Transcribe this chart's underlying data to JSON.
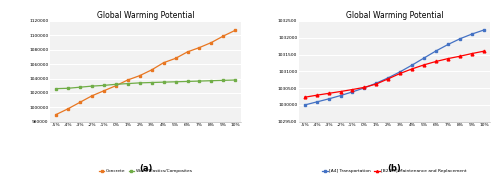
{
  "title": "Global Warming Potential",
  "x_labels": [
    "-5%",
    "-4%",
    "-3%",
    "-2%",
    "-1%",
    "0%",
    "1%",
    "2%",
    "3%",
    "4%",
    "5%",
    "6%",
    "7%",
    "8%",
    "9%",
    "10%"
  ],
  "x_vals": [
    -5,
    -4,
    -3,
    -2,
    -1,
    0,
    1,
    2,
    3,
    4,
    5,
    6,
    7,
    8,
    9,
    10
  ],
  "concrete_values": [
    990000,
    998000,
    1007000,
    1016000,
    1023000,
    1030000,
    1038000,
    1044000,
    1052000,
    1062000,
    1068000,
    1077000,
    1083000,
    1090000,
    1099000,
    1107000
  ],
  "concrete_color": "#E87722",
  "concrete_label": "Concrete",
  "wood_values": [
    1026000,
    1026500,
    1028000,
    1029500,
    1030500,
    1032000,
    1033000,
    1034000,
    1034500,
    1035000,
    1035500,
    1036000,
    1036500,
    1037000,
    1037500,
    1038000
  ],
  "wood_color": "#70AD47",
  "wood_label": "Wood/Plastics/Composites",
  "ylim_a": [
    980000,
    1120000
  ],
  "yticks_a": [
    980000,
    1000000,
    1020000,
    1040000,
    1060000,
    1080000,
    1100000,
    1120000
  ],
  "transport_values": [
    1030000,
    1030090,
    1030180,
    1030280,
    1030390,
    1030510,
    1030650,
    1030810,
    1030990,
    1031190,
    1031400,
    1031610,
    1031800,
    1031970,
    1032110,
    1032230
  ],
  "transport_color": "#4472C4",
  "transport_label": "[A4] Transportation",
  "maintenance_values": [
    1030230,
    1030290,
    1030345,
    1030400,
    1030460,
    1030525,
    1030625,
    1030780,
    1030940,
    1031075,
    1031195,
    1031295,
    1031380,
    1031450,
    1031530,
    1031600
  ],
  "maintenance_color": "#FF0000",
  "maintenance_label": "[B2-B5] Maintenance and Replacement",
  "ylim_b": [
    1029500,
    1032500
  ],
  "yticks_b": [
    1029500,
    1030000,
    1030500,
    1031000,
    1031500,
    1032000,
    1032500
  ],
  "label_a": "(a)",
  "label_b": "(b)",
  "bg_color": "#FFFFFF",
  "plot_bg_color": "#F2F2F2"
}
